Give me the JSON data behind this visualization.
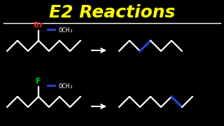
{
  "title": "E2 Reactions",
  "title_color": "#FFFF00",
  "title_fontsize": 18,
  "bg_color": "#000000",
  "halogen1": "Br",
  "halogen1_color": "#DD2222",
  "halogen2": "F",
  "halogen2_color": "#00CC00",
  "reagent": "OCH₃",
  "reagent_color": "#FFFFFF",
  "line_color": "#FFFFFF",
  "blue_color": "#2244CC",
  "arrow_color": "#FFFFFF"
}
